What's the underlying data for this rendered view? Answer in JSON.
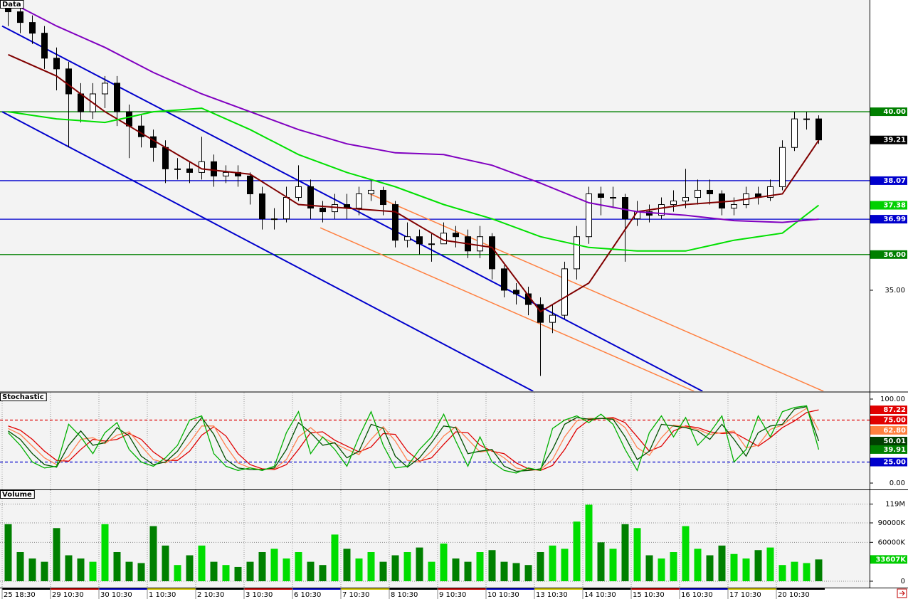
{
  "chart_data": [
    {
      "type": "candlestick",
      "title": "Data",
      "open": [
        43.0,
        42.8,
        42.5,
        42.2,
        41.5,
        41.2,
        40.5,
        40.0,
        40.5,
        40.8,
        40.0,
        39.6,
        39.3,
        39.0,
        38.4,
        38.4,
        38.3,
        38.6,
        38.2,
        38.3,
        38.2,
        37.7,
        37.0,
        37.0,
        37.6,
        37.9,
        37.3,
        37.2,
        37.4,
        37.3,
        37.7,
        37.8,
        37.4,
        36.4,
        36.5,
        36.3,
        36.3,
        36.6,
        36.5,
        36.1,
        36.5,
        35.6,
        35.0,
        34.9,
        34.6,
        34.1,
        34.3,
        35.6,
        36.5,
        37.7,
        37.6,
        37.6,
        37.0,
        37.2,
        37.1,
        37.4,
        37.5,
        37.6,
        37.8,
        37.7,
        37.3,
        37.4,
        37.7,
        37.6,
        37.9,
        39.0,
        39.8,
        39.8
      ],
      "high": [
        43.1,
        43.0,
        42.7,
        42.4,
        41.8,
        41.4,
        40.8,
        40.8,
        41.0,
        41.0,
        40.2,
        39.9,
        39.5,
        39.2,
        38.7,
        38.6,
        39.3,
        38.8,
        38.5,
        38.5,
        38.3,
        37.9,
        37.3,
        37.9,
        38.5,
        38.1,
        37.5,
        37.7,
        37.7,
        37.9,
        38.1,
        37.9,
        37.5,
        36.9,
        36.7,
        36.6,
        36.9,
        36.8,
        36.7,
        36.8,
        36.6,
        35.7,
        35.2,
        35.1,
        34.8,
        34.6,
        35.8,
        36.8,
        37.9,
        37.9,
        37.9,
        37.7,
        37.5,
        37.4,
        37.6,
        37.8,
        38.4,
        38.1,
        38.1,
        37.8,
        37.6,
        37.9,
        37.9,
        38.1,
        39.2,
        40.0,
        40.0,
        39.9
      ],
      "low": [
        42.4,
        42.2,
        41.9,
        41.2,
        40.6,
        39.0,
        39.7,
        39.8,
        40.1,
        39.6,
        38.7,
        39.0,
        38.6,
        38.0,
        38.1,
        38.0,
        38.1,
        37.9,
        38.0,
        37.9,
        37.4,
        36.7,
        36.7,
        36.9,
        37.5,
        37.0,
        36.9,
        37.0,
        37.0,
        37.1,
        37.5,
        37.1,
        36.2,
        36.2,
        36.0,
        35.8,
        36.3,
        36.2,
        35.9,
        35.9,
        35.3,
        34.8,
        34.6,
        34.3,
        32.6,
        33.8,
        34.2,
        35.3,
        36.3,
        37.1,
        37.3,
        35.8,
        36.8,
        36.9,
        37.0,
        37.2,
        37.3,
        37.4,
        37.4,
        37.1,
        37.1,
        37.3,
        37.4,
        37.5,
        37.8,
        38.9,
        39.5,
        39.1
      ],
      "close": [
        42.8,
        42.5,
        42.2,
        41.5,
        41.2,
        40.5,
        40.0,
        40.5,
        40.8,
        40.0,
        39.6,
        39.3,
        39.0,
        38.4,
        38.4,
        38.3,
        38.6,
        38.2,
        38.3,
        38.2,
        37.7,
        37.0,
        37.0,
        37.6,
        37.9,
        37.3,
        37.2,
        37.4,
        37.3,
        37.7,
        37.8,
        37.4,
        36.4,
        36.5,
        36.3,
        36.3,
        36.6,
        36.5,
        36.1,
        36.5,
        35.6,
        35.0,
        34.9,
        34.6,
        34.1,
        34.3,
        35.6,
        36.5,
        37.7,
        37.6,
        37.6,
        37.0,
        37.2,
        37.1,
        37.4,
        37.5,
        37.6,
        37.8,
        37.7,
        37.3,
        37.4,
        37.7,
        37.6,
        37.9,
        39.0,
        39.8,
        39.8,
        39.21
      ],
      "up_color": "#ffffff",
      "down_color": "#000000",
      "xlim": [
        0,
        68
      ],
      "ylim": [
        32.17,
        43.13
      ],
      "yticks": [
        {
          "value": 35,
          "label": "35.00"
        },
        {
          "value": 40,
          "label": "40.00"
        }
      ],
      "series": [
        {
          "color": "#800000",
          "x": [
            0.5,
            4.5,
            8.5,
            12.5,
            16.5,
            20.5,
            24.5,
            28.5,
            32.5,
            36.5,
            40.5,
            44.5,
            48.5,
            52.5,
            56.5,
            60.5,
            64.5,
            67.5
          ],
          "values": [
            41.6,
            41.0,
            40.0,
            39.2,
            38.4,
            38.25,
            37.4,
            37.3,
            37.2,
            36.4,
            36.2,
            34.4,
            35.2,
            37.2,
            37.4,
            37.5,
            37.7,
            39.2
          ]
        },
        {
          "color": "#00e000",
          "x": [
            0.5,
            4.5,
            8.5,
            12.5,
            16.5,
            20.5,
            24.5,
            28.5,
            32.5,
            36.5,
            40.5,
            44.5,
            48.5,
            52.5,
            56.5,
            60.5,
            64.5,
            67.5
          ],
          "values": [
            40.0,
            39.8,
            39.7,
            40.0,
            40.1,
            39.5,
            38.8,
            38.3,
            37.9,
            37.4,
            37.0,
            36.5,
            36.2,
            36.1,
            36.1,
            36.4,
            36.6,
            37.38
          ]
        },
        {
          "color": "#8000c0",
          "x": [
            0.5,
            4.5,
            8.5,
            12.5,
            16.5,
            20.5,
            24.5,
            28.5,
            32.5,
            36.5,
            40.5,
            44.5,
            48.5,
            52.5,
            56.5,
            60.5,
            64.5,
            67.5
          ],
          "values": [
            43.1,
            42.4,
            41.8,
            41.1,
            40.5,
            40.0,
            39.5,
            39.1,
            38.85,
            38.8,
            38.5,
            38.0,
            37.45,
            37.2,
            37.1,
            36.95,
            36.9,
            36.99
          ]
        }
      ],
      "trendlines": [
        {
          "color": "#0000cc",
          "x": [
            0,
            57.9
          ],
          "values": [
            42.4,
            32.17
          ]
        },
        {
          "color": "#0000cc",
          "x": [
            0,
            43.9
          ],
          "values": [
            40.0,
            32.17
          ]
        },
        {
          "color": "#ff8040",
          "x": [
            30.4,
            67.9
          ],
          "values": [
            37.7,
            32.17
          ]
        },
        {
          "color": "#ff8040",
          "x": [
            26.3,
            57.2
          ],
          "values": [
            36.75,
            32.17
          ]
        }
      ],
      "markers": [
        {
          "value": 40,
          "label": "40.00",
          "color": "#008000",
          "line": true
        },
        {
          "value": 39.21,
          "label": "39.21",
          "color": "#000000"
        },
        {
          "value": 38.07,
          "label": "38.07",
          "color": "#0000cc",
          "line": true
        },
        {
          "value": 37.38,
          "label": "37.38",
          "color": "#00d000"
        },
        {
          "value": 36.99,
          "label": "36.99",
          "color": "#0000cc",
          "line": true
        },
        {
          "value": 36,
          "label": "36.00",
          "color": "#008000",
          "line": true
        }
      ]
    },
    {
      "type": "line",
      "title": "Stochastic",
      "xlim": [
        0,
        68
      ],
      "ylim": [
        -7.6,
        107.6
      ],
      "yticks": [
        {
          "value": 100,
          "label": "100.00"
        },
        {
          "value": 0,
          "label": "0.00"
        }
      ],
      "series": [
        {
          "color": "#e00000",
          "values": [
            68,
            63,
            52,
            38,
            27,
            26,
            40,
            52,
            50,
            52,
            59,
            52,
            37,
            27,
            27,
            38,
            57,
            67,
            56,
            35,
            22,
            17,
            16,
            22,
            40,
            60,
            61,
            51,
            44,
            37,
            43,
            59,
            58,
            38,
            26,
            30,
            46,
            61,
            60,
            45,
            38,
            35,
            24,
            17,
            15,
            21,
            40,
            64,
            75,
            77,
            78,
            72,
            55,
            38,
            44,
            62,
            68,
            66,
            61,
            59,
            60,
            52,
            44,
            54,
            66,
            74,
            84,
            87.22
          ]
        },
        {
          "color": "#ff8050",
          "values": [
            65,
            58,
            44,
            30,
            22,
            32,
            52,
            54,
            47,
            57,
            61,
            44,
            28,
            24,
            31,
            48,
            68,
            68,
            44,
            24,
            18,
            16,
            17,
            28,
            55,
            66,
            54,
            47,
            40,
            34,
            52,
            67,
            50,
            27,
            25,
            38,
            56,
            67,
            52,
            37,
            39,
            30,
            18,
            15,
            16,
            28,
            55,
            74,
            77,
            77,
            77,
            66,
            42,
            33,
            54,
            69,
            67,
            64,
            58,
            60,
            62,
            42,
            45,
            64,
            69,
            80,
            89,
            62.8
          ]
        },
        {
          "color": "#005000",
          "values": [
            62,
            52,
            35,
            22,
            19,
            45,
            62,
            45,
            48,
            66,
            56,
            32,
            22,
            25,
            38,
            60,
            78,
            58,
            28,
            18,
            16,
            16,
            18,
            40,
            72,
            60,
            45,
            48,
            30,
            38,
            70,
            65,
            32,
            19,
            30,
            48,
            68,
            66,
            35,
            38,
            40,
            20,
            14,
            15,
            17,
            40,
            70,
            78,
            76,
            77,
            76,
            55,
            28,
            38,
            70,
            68,
            66,
            62,
            52,
            70,
            52,
            32,
            60,
            68,
            70,
            88,
            91,
            50.01
          ]
        },
        {
          "color": "#00b000",
          "values": [
            60,
            45,
            25,
            18,
            20,
            70,
            55,
            35,
            60,
            72,
            40,
            25,
            20,
            30,
            45,
            75,
            80,
            35,
            20,
            15,
            18,
            15,
            20,
            60,
            85,
            35,
            55,
            40,
            20,
            55,
            85,
            45,
            18,
            20,
            40,
            55,
            82,
            50,
            20,
            55,
            25,
            15,
            12,
            18,
            15,
            65,
            75,
            80,
            72,
            82,
            70,
            40,
            15,
            60,
            80,
            55,
            78,
            45,
            60,
            80,
            25,
            40,
            80,
            55,
            85,
            90,
            92,
            39.91
          ]
        }
      ],
      "markers": [
        {
          "value": 87.22,
          "label": "87.22",
          "color": "#e00000"
        },
        {
          "value": 75,
          "label": "75.00",
          "color": "#e00000",
          "line": true,
          "dashed": true
        },
        {
          "value": 62.8,
          "label": "62.80",
          "color": "#ff8040"
        },
        {
          "value": 50.01,
          "label": "50.01",
          "color": "#004000"
        },
        {
          "value": 39.91,
          "label": "39.91",
          "color": "#008000"
        },
        {
          "value": 25,
          "label": "25.00",
          "color": "#0000cc",
          "line": true,
          "dashed": true
        }
      ]
    },
    {
      "type": "bar",
      "title": "Volume",
      "values": [
        88000000,
        45000000,
        35000000,
        30000000,
        82000000,
        40000000,
        35000000,
        30000000,
        88000000,
        45000000,
        30000000,
        28000000,
        85000000,
        55000000,
        25000000,
        40000000,
        55000000,
        30000000,
        25000000,
        22000000,
        30000000,
        45000000,
        50000000,
        35000000,
        45000000,
        30000000,
        25000000,
        72000000,
        50000000,
        35000000,
        45000000,
        30000000,
        40000000,
        45000000,
        52000000,
        30000000,
        58000000,
        35000000,
        30000000,
        45000000,
        48000000,
        30000000,
        28000000,
        25000000,
        45000000,
        55000000,
        50000000,
        92000000,
        118000000,
        60000000,
        50000000,
        88000000,
        82000000,
        40000000,
        35000000,
        45000000,
        85000000,
        50000000,
        40000000,
        55000000,
        42000000,
        35000000,
        48000000,
        52000000,
        25000000,
        30000000,
        28000000,
        33607000
      ],
      "color": "#00dd00",
      "down_color": "#008000",
      "xlim": [
        0,
        68
      ],
      "ylim": [
        -9900000,
        140500000
      ],
      "yticks": [
        0,
        {
          "value": 60000000,
          "label": "60000K"
        },
        {
          "value": 90000000,
          "label": "90000K"
        },
        {
          "value": 119000000,
          "label": "119M"
        }
      ],
      "xticks": [
        {
          "value": 0,
          "label": "25 18:30"
        },
        {
          "value": 4,
          "label": "29 10:30"
        },
        {
          "value": 8,
          "label": "30 10:30"
        },
        {
          "value": 12,
          "label": "1 10:30"
        },
        {
          "value": 16,
          "label": "2 10:30"
        },
        {
          "value": 20,
          "label": "3 10:30"
        },
        {
          "value": 24,
          "label": "6 10:30"
        },
        {
          "value": 28,
          "label": "7 10:30"
        },
        {
          "value": 32,
          "label": "8 10:30"
        },
        {
          "value": 36,
          "label": "9 10:30"
        },
        {
          "value": 40,
          "label": "10 10:30"
        },
        {
          "value": 44,
          "label": "13 10:30"
        },
        {
          "value": 48,
          "label": "14 10:30"
        },
        {
          "value": 52,
          "label": "15 10:30"
        },
        {
          "value": 56,
          "label": "16 10:30"
        },
        {
          "value": 60,
          "label": "17 10:30"
        },
        {
          "value": 64,
          "label": "20 10:30"
        }
      ],
      "markers": [
        {
          "value": 33607000,
          "label": "33607K",
          "color": "#00cc00"
        }
      ]
    }
  ]
}
